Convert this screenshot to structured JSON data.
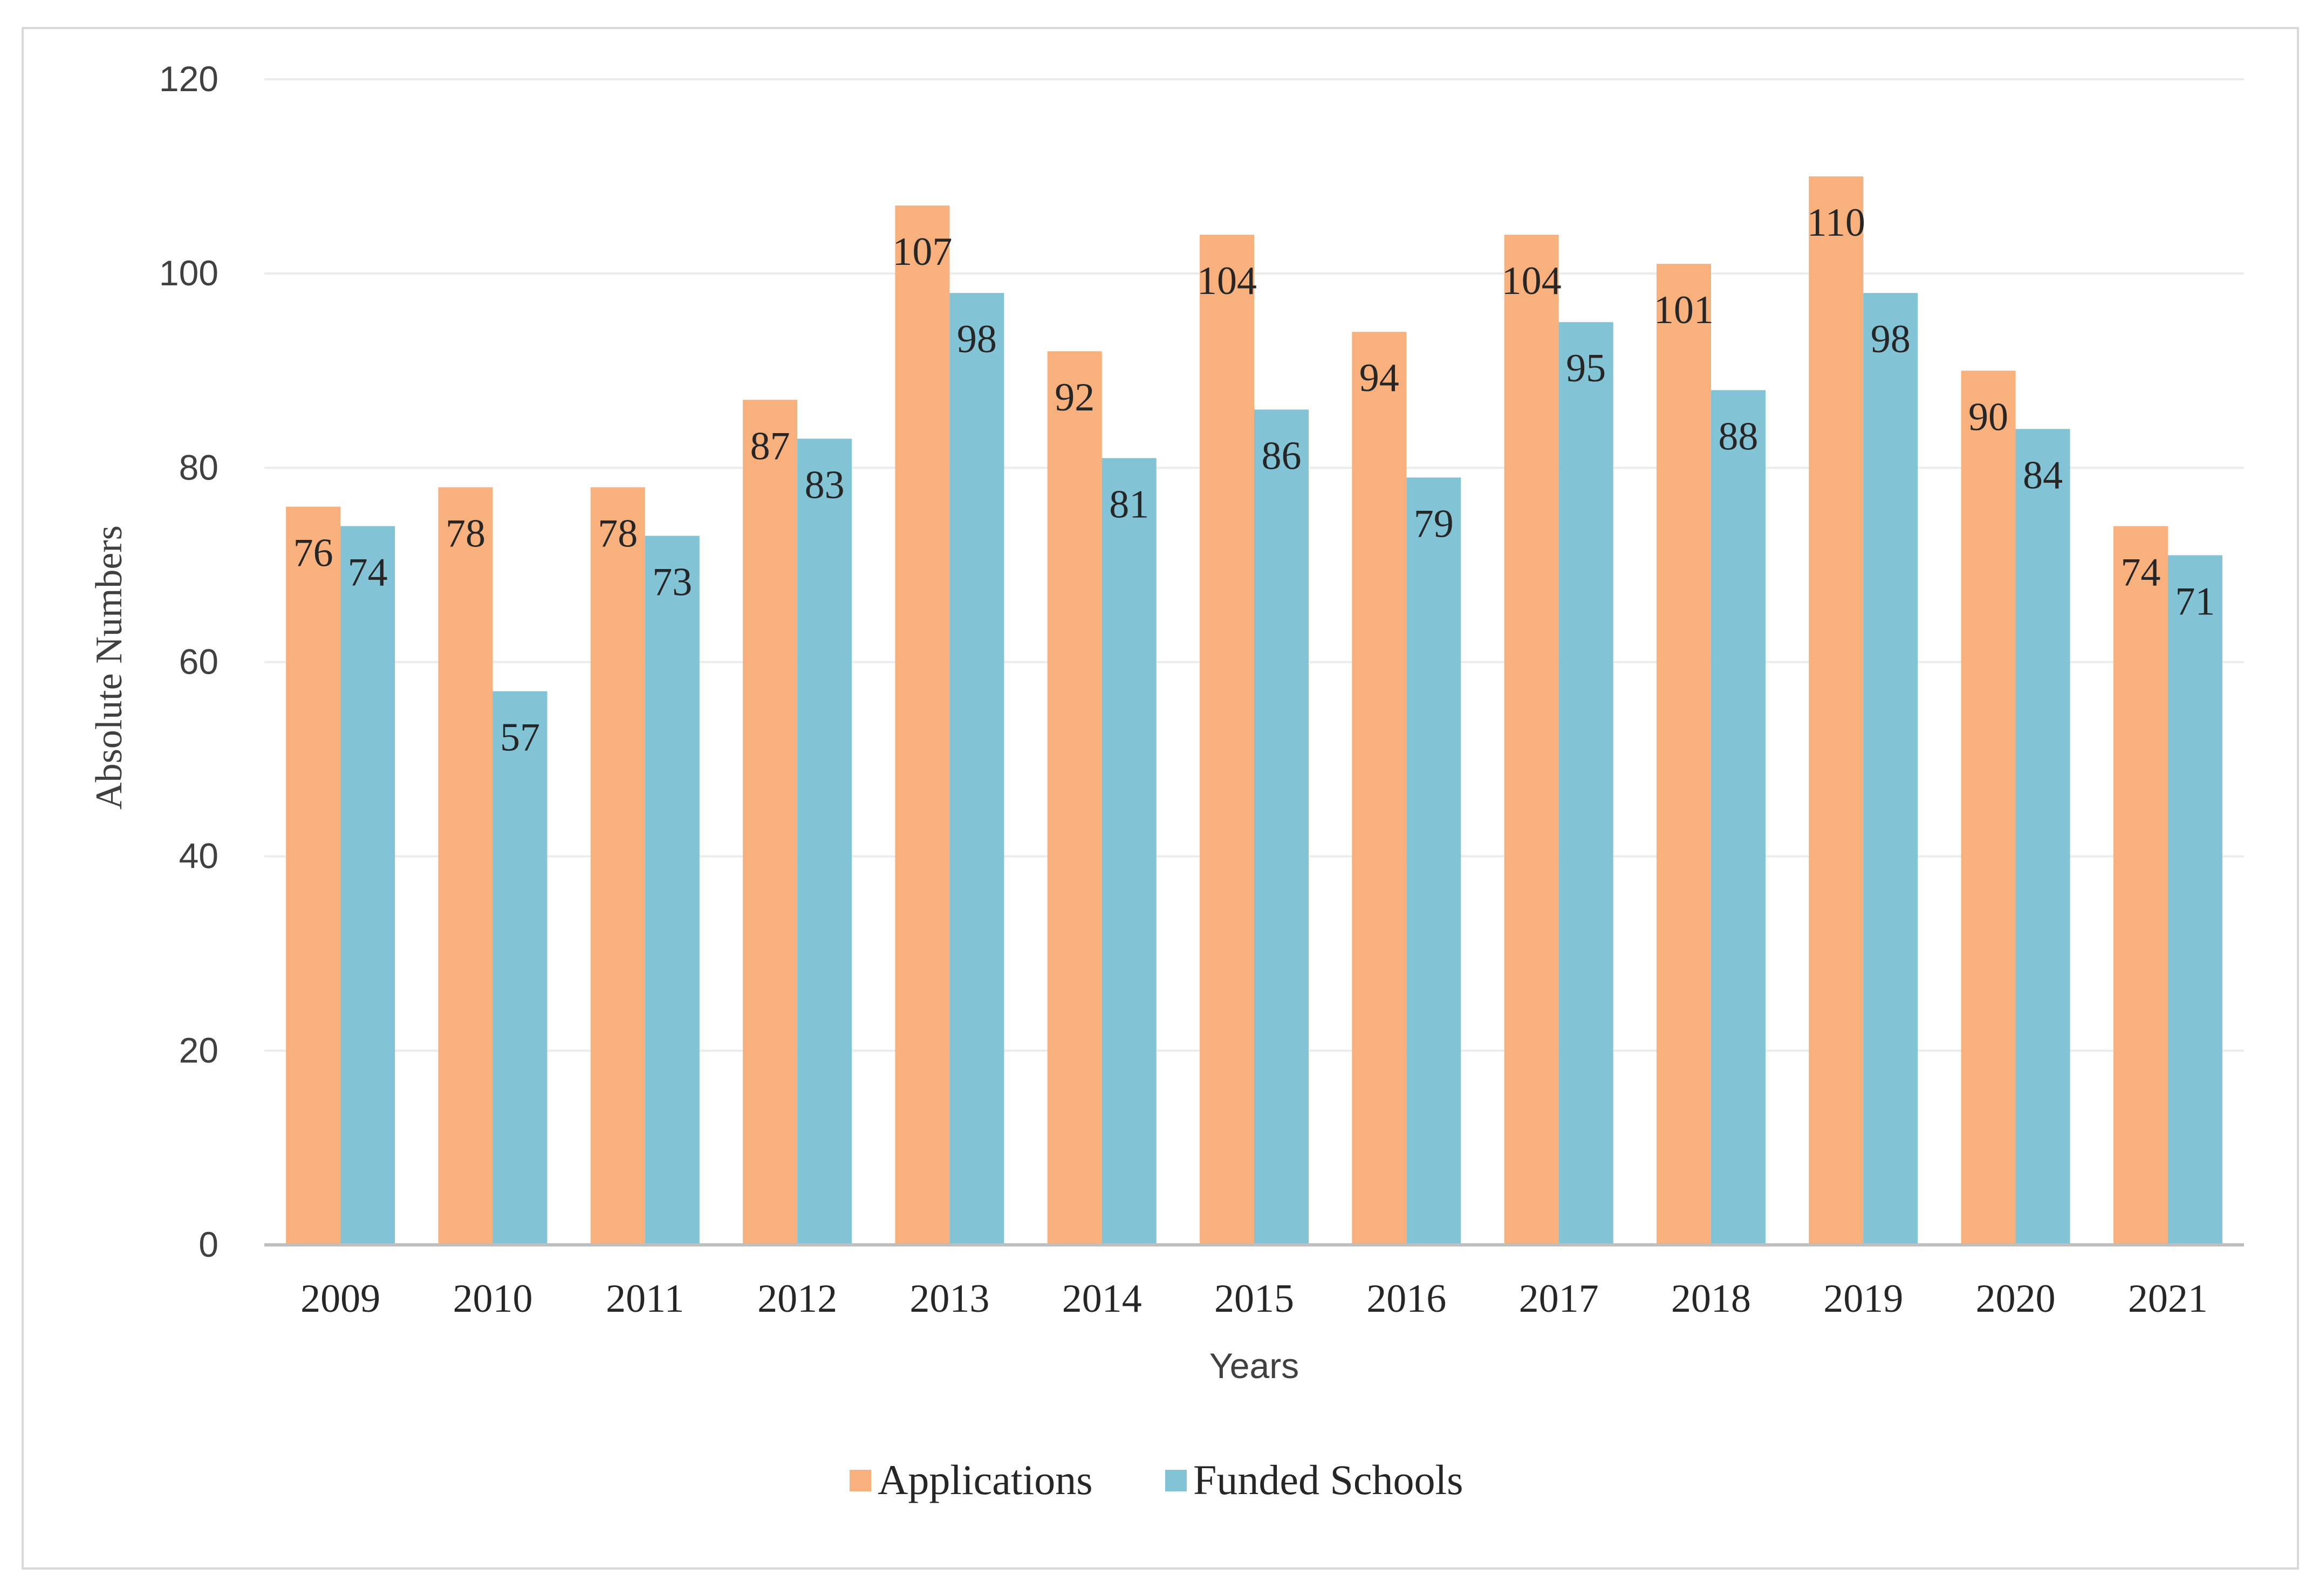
{
  "chart_data": {
    "type": "bar",
    "title": "",
    "xlabel": "Years",
    "ylabel": "Absolute Numbers",
    "ylim": [
      0,
      120
    ],
    "yticks": [
      0,
      20,
      40,
      60,
      80,
      100,
      120
    ],
    "grid": true,
    "legend_position": "bottom",
    "categories": [
      "2009",
      "2010",
      "2011",
      "2012",
      "2013",
      "2014",
      "2015",
      "2016",
      "2017",
      "2018",
      "2019",
      "2020",
      "2021"
    ],
    "series": [
      {
        "name": "Applications",
        "color": "#F8B07C",
        "values": [
          76,
          78,
          78,
          87,
          107,
          92,
          104,
          94,
          104,
          101,
          110,
          90,
          74
        ]
      },
      {
        "name": "Funded Schools",
        "color": "#82C4D6",
        "values": [
          74,
          57,
          73,
          83,
          98,
          81,
          86,
          79,
          95,
          88,
          98,
          84,
          71
        ]
      }
    ]
  }
}
